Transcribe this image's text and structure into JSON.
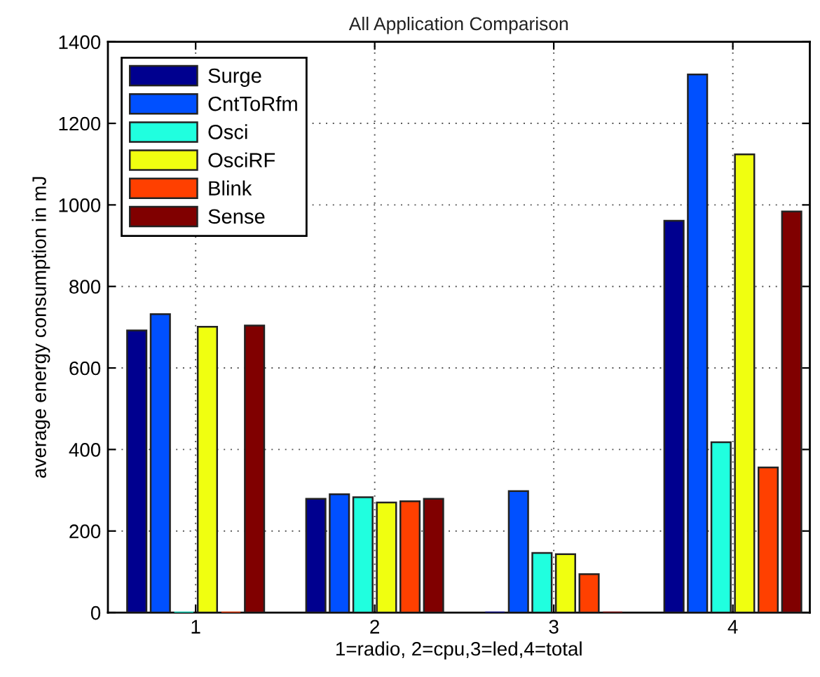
{
  "chart_data": {
    "type": "bar",
    "title": "All Application Comparison",
    "xlabel": "1=radio, 2=cpu,3=led,4=total",
    "ylabel": "average energy consumption in mJ",
    "categories": [
      "1",
      "2",
      "3",
      "4"
    ],
    "series": [
      {
        "name": "Surge",
        "color": "#00008f",
        "values": [
          692,
          279,
          0,
          961
        ]
      },
      {
        "name": "CntToRfm",
        "color": "#0050ff",
        "values": [
          732,
          290,
          298,
          1320
        ]
      },
      {
        "name": "Osci",
        "color": "#20ffdf",
        "values": [
          0,
          283,
          146,
          418
        ]
      },
      {
        "name": "OsciRF",
        "color": "#f0ff10",
        "values": [
          701,
          270,
          143,
          1124
        ]
      },
      {
        "name": "Blink",
        "color": "#ff4000",
        "values": [
          0,
          273,
          94,
          356
        ]
      },
      {
        "name": "Sense",
        "color": "#800000",
        "values": [
          704,
          279,
          0,
          984
        ]
      }
    ],
    "ylim": [
      0,
      1400
    ],
    "yticks": [
      0,
      200,
      400,
      600,
      800,
      1000,
      1200,
      1400
    ],
    "grid": true,
    "legend": "top left"
  }
}
